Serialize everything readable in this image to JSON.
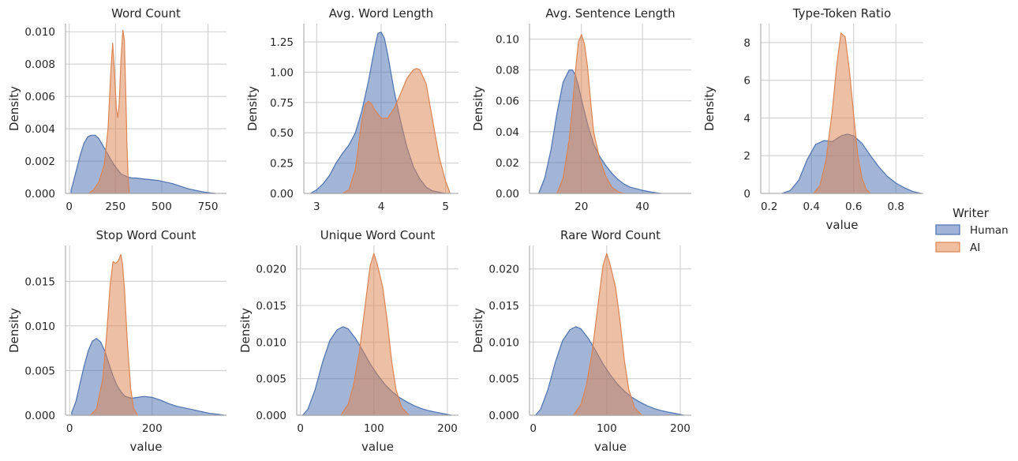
{
  "legend": {
    "title": "Writer",
    "entries": [
      {
        "name": "Human",
        "fill": "#a1b3d7",
        "stroke": "#4c72b0"
      },
      {
        "name": "AI",
        "fill": "#efbf9f",
        "stroke": "#dd8452"
      }
    ]
  },
  "colors": {
    "human_fill": "#4c72b0",
    "human_line": "#4c72b0",
    "ai_fill": "#dd8452",
    "ai_line": "#dd8452",
    "grid": "#cfcfcf",
    "fill_opacity": 0.52
  },
  "chart_data": [
    {
      "type": "area",
      "title": "Word Count",
      "xlabel": "",
      "ylabel": "Density",
      "xlim": [
        -20,
        850
      ],
      "ylim": [
        0,
        0.0105
      ],
      "xticks": [
        0,
        250,
        500,
        750
      ],
      "xticklabels": [
        "0",
        "250",
        "500",
        "750"
      ],
      "yticks": [
        0,
        0.002,
        0.004,
        0.006,
        0.008,
        0.01
      ],
      "yticklabels": [
        "0.000",
        "0.002",
        "0.004",
        "0.006",
        "0.008",
        "0.010"
      ],
      "series": [
        {
          "name": "Human",
          "x": [
            10,
            20,
            40,
            60,
            80,
            100,
            120,
            140,
            160,
            180,
            200,
            220,
            240,
            260,
            280,
            300,
            320,
            340,
            360,
            400,
            440,
            480,
            520,
            560,
            600,
            640,
            680,
            720,
            760,
            790
          ],
          "y": [
            0.0002,
            0.0006,
            0.0015,
            0.0024,
            0.0031,
            0.0035,
            0.0036,
            0.0036,
            0.0034,
            0.003,
            0.0026,
            0.0022,
            0.0018,
            0.0015,
            0.0012,
            0.0011,
            0.001,
            0.00095,
            0.00095,
            0.0009,
            0.00085,
            0.0008,
            0.0007,
            0.0006,
            0.00045,
            0.0003,
            0.0002,
            0.0001,
            4e-05,
            0.0
          ]
        },
        {
          "name": "AI",
          "x": [
            105,
            130,
            160,
            190,
            210,
            225,
            235,
            245,
            255,
            262,
            270,
            280,
            290,
            298,
            305,
            312,
            318,
            325
          ],
          "y": [
            0.0,
            0.0002,
            0.0007,
            0.0018,
            0.004,
            0.0075,
            0.0093,
            0.0075,
            0.0052,
            0.0047,
            0.0055,
            0.0083,
            0.0101,
            0.0095,
            0.0065,
            0.0032,
            0.001,
            0.0
          ]
        }
      ]
    },
    {
      "type": "area",
      "title": "Avg. Word Length",
      "xlabel": "",
      "ylabel": "Density",
      "xlim": [
        2.8,
        5.2
      ],
      "ylim": [
        0,
        1.4
      ],
      "xticks": [
        3,
        4,
        5
      ],
      "xticklabels": [
        "3",
        "4",
        "5"
      ],
      "yticks": [
        0,
        0.25,
        0.5,
        0.75,
        1.0,
        1.25
      ],
      "yticklabels": [
        "0.00",
        "0.25",
        "0.50",
        "0.75",
        "1.00",
        "1.25"
      ],
      "series": [
        {
          "name": "Human",
          "x": [
            2.9,
            3.0,
            3.1,
            3.2,
            3.3,
            3.4,
            3.5,
            3.6,
            3.7,
            3.8,
            3.9,
            3.95,
            4.0,
            4.05,
            4.1,
            4.2,
            4.3,
            4.4,
            4.5,
            4.6,
            4.7,
            4.8,
            4.9,
            5.0
          ],
          "y": [
            0.0,
            0.03,
            0.08,
            0.15,
            0.25,
            0.33,
            0.4,
            0.5,
            0.68,
            0.92,
            1.2,
            1.32,
            1.33,
            1.28,
            1.15,
            0.85,
            0.6,
            0.38,
            0.22,
            0.12,
            0.05,
            0.02,
            0.01,
            0.0
          ]
        },
        {
          "name": "AI",
          "x": [
            3.4,
            3.5,
            3.6,
            3.65,
            3.7,
            3.75,
            3.8,
            3.85,
            3.9,
            4.0,
            4.1,
            4.2,
            4.3,
            4.4,
            4.5,
            4.55,
            4.6,
            4.7,
            4.8,
            4.9,
            5.0,
            5.07
          ],
          "y": [
            0.0,
            0.03,
            0.2,
            0.4,
            0.6,
            0.73,
            0.76,
            0.74,
            0.69,
            0.62,
            0.62,
            0.7,
            0.82,
            0.95,
            1.02,
            1.03,
            1.02,
            0.9,
            0.6,
            0.3,
            0.1,
            0.0
          ]
        }
      ]
    },
    {
      "type": "area",
      "title": "Avg. Sentence Length",
      "xlabel": "",
      "ylabel": "Density",
      "xlim": [
        3,
        56
      ],
      "ylim": [
        0,
        0.11
      ],
      "xticks": [
        20,
        40
      ],
      "xticklabels": [
        "20",
        "40"
      ],
      "yticks": [
        0,
        0.02,
        0.04,
        0.06,
        0.08,
        0.1
      ],
      "yticklabels": [
        "0.00",
        "0.02",
        "0.04",
        "0.06",
        "0.08",
        "0.10"
      ],
      "series": [
        {
          "name": "Human",
          "x": [
            6,
            8,
            10,
            12,
            14,
            16,
            17,
            18,
            19,
            20,
            22,
            24,
            26,
            28,
            30,
            32,
            34,
            36,
            38,
            40,
            43,
            46
          ],
          "y": [
            0.0,
            0.01,
            0.028,
            0.052,
            0.072,
            0.08,
            0.08,
            0.077,
            0.07,
            0.061,
            0.045,
            0.032,
            0.024,
            0.018,
            0.013,
            0.009,
            0.006,
            0.004,
            0.003,
            0.002,
            0.0008,
            0.0
          ]
        },
        {
          "name": "AI",
          "x": [
            12,
            14,
            16,
            17,
            18,
            19,
            20,
            21,
            22,
            23,
            24,
            26,
            28,
            30,
            32,
            34
          ],
          "y": [
            0.0,
            0.01,
            0.035,
            0.055,
            0.078,
            0.098,
            0.103,
            0.097,
            0.082,
            0.06,
            0.04,
            0.022,
            0.011,
            0.004,
            0.001,
            0.0
          ]
        }
      ]
    },
    {
      "type": "area",
      "title": "Type-Token Ratio",
      "xlabel": "value",
      "ylabel": "Density",
      "xlim": [
        0.16,
        0.93
      ],
      "ylim": [
        0,
        9
      ],
      "xticks": [
        0.2,
        0.4,
        0.6,
        0.8
      ],
      "xticklabels": [
        "0.2",
        "0.4",
        "0.6",
        "0.8"
      ],
      "yticks": [
        0,
        2,
        4,
        6,
        8
      ],
      "yticklabels": [
        "0",
        "2",
        "4",
        "6",
        "8"
      ],
      "series": [
        {
          "name": "Human",
          "x": [
            0.26,
            0.3,
            0.34,
            0.38,
            0.42,
            0.46,
            0.5,
            0.54,
            0.57,
            0.6,
            0.64,
            0.68,
            0.72,
            0.76,
            0.8,
            0.84,
            0.88,
            0.92
          ],
          "y": [
            0.0,
            0.15,
            0.7,
            1.8,
            2.6,
            2.8,
            2.75,
            3.05,
            3.15,
            3.05,
            2.65,
            2.0,
            1.4,
            0.9,
            0.55,
            0.3,
            0.1,
            0.0
          ]
        },
        {
          "name": "AI",
          "x": [
            0.41,
            0.44,
            0.47,
            0.5,
            0.52,
            0.54,
            0.56,
            0.58,
            0.6,
            0.62,
            0.64,
            0.66,
            0.68
          ],
          "y": [
            0.0,
            0.4,
            1.8,
            4.5,
            6.8,
            8.5,
            8.3,
            6.5,
            4.2,
            2.0,
            0.8,
            0.2,
            0.0
          ]
        }
      ]
    },
    {
      "type": "area",
      "title": "Stop Word Count",
      "xlabel": "value",
      "ylabel": "Density",
      "xlim": [
        -10,
        380
      ],
      "ylim": [
        0,
        0.019
      ],
      "xticks": [
        0,
        200
      ],
      "xticklabels": [
        "0",
        "200"
      ],
      "yticks": [
        0,
        0.005,
        0.01,
        0.015
      ],
      "yticklabels": [
        "0.000",
        "0.005",
        "0.010",
        "0.015"
      ],
      "series": [
        {
          "name": "Human",
          "x": [
            5,
            15,
            25,
            35,
            45,
            55,
            65,
            75,
            85,
            95,
            105,
            115,
            125,
            135,
            150,
            165,
            180,
            200,
            220,
            240,
            260,
            280,
            300,
            320,
            340,
            360,
            375
          ],
          "y": [
            0.0003,
            0.0015,
            0.0035,
            0.0055,
            0.0072,
            0.0083,
            0.0086,
            0.0082,
            0.0072,
            0.0058,
            0.0044,
            0.0033,
            0.0026,
            0.0021,
            0.0019,
            0.002,
            0.0021,
            0.002,
            0.0017,
            0.0013,
            0.001,
            0.0008,
            0.0006,
            0.0004,
            0.0002,
            0.0001,
            0.0
          ]
        },
        {
          "name": "AI",
          "x": [
            50,
            65,
            80,
            90,
            98,
            105,
            112,
            118,
            124,
            128,
            133,
            140,
            148,
            155,
            165
          ],
          "y": [
            0.0,
            0.0007,
            0.004,
            0.0092,
            0.0145,
            0.0172,
            0.017,
            0.0173,
            0.018,
            0.017,
            0.014,
            0.008,
            0.003,
            0.0008,
            0.0
          ]
        }
      ]
    },
    {
      "type": "area",
      "title": "Unique Word Count",
      "xlabel": "value",
      "ylabel": "Density",
      "xlim": [
        -5,
        215
      ],
      "ylim": [
        0,
        0.0232
      ],
      "xticks": [
        0,
        100,
        200
      ],
      "xticklabels": [
        "0",
        "100",
        "200"
      ],
      "yticks": [
        0,
        0.005,
        0.01,
        0.015,
        0.02
      ],
      "yticklabels": [
        "0.000",
        "0.005",
        "0.010",
        "0.015",
        "0.020"
      ],
      "series": [
        {
          "name": "Human",
          "x": [
            3,
            10,
            20,
            30,
            40,
            50,
            58,
            65,
            75,
            85,
            95,
            105,
            115,
            125,
            135,
            145,
            155,
            165,
            175,
            185,
            195,
            205
          ],
          "y": [
            0.0,
            0.0008,
            0.0035,
            0.0072,
            0.0102,
            0.0117,
            0.0121,
            0.0118,
            0.0105,
            0.0088,
            0.007,
            0.0055,
            0.0042,
            0.0032,
            0.0024,
            0.0018,
            0.0013,
            0.0009,
            0.0006,
            0.0004,
            0.0002,
            0.0
          ]
        },
        {
          "name": "AI",
          "x": [
            55,
            65,
            72,
            80,
            88,
            95,
            100,
            104,
            108,
            112,
            118,
            124,
            130,
            138,
            148
          ],
          "y": [
            0.0,
            0.0015,
            0.004,
            0.0085,
            0.015,
            0.0205,
            0.0221,
            0.0208,
            0.0192,
            0.0175,
            0.013,
            0.0075,
            0.0035,
            0.001,
            0.0
          ]
        }
      ]
    },
    {
      "type": "area",
      "title": "Rare Word Count",
      "xlabel": "value",
      "ylabel": "Density",
      "xlim": [
        -5,
        215
      ],
      "ylim": [
        0,
        0.0232
      ],
      "xticks": [
        0,
        100,
        200
      ],
      "xticklabels": [
        "0",
        "100",
        "200"
      ],
      "yticks": [
        0,
        0.005,
        0.01,
        0.015,
        0.02
      ],
      "yticklabels": [
        "0.000",
        "0.005",
        "0.010",
        "0.015",
        "0.020"
      ],
      "series": [
        {
          "name": "Human",
          "x": [
            3,
            10,
            20,
            30,
            40,
            50,
            58,
            65,
            75,
            85,
            95,
            105,
            115,
            125,
            135,
            145,
            155,
            165,
            175,
            185,
            195,
            205
          ],
          "y": [
            0.0,
            0.0008,
            0.0035,
            0.0072,
            0.0102,
            0.0117,
            0.0121,
            0.0118,
            0.0105,
            0.0088,
            0.007,
            0.0055,
            0.0042,
            0.0032,
            0.0024,
            0.0018,
            0.0013,
            0.0009,
            0.0006,
            0.0004,
            0.0002,
            0.0
          ]
        },
        {
          "name": "AI",
          "x": [
            55,
            65,
            72,
            80,
            88,
            95,
            100,
            104,
            108,
            112,
            118,
            124,
            130,
            138,
            148
          ],
          "y": [
            0.0,
            0.0015,
            0.004,
            0.0085,
            0.015,
            0.0205,
            0.0221,
            0.0208,
            0.0192,
            0.0175,
            0.013,
            0.0075,
            0.0035,
            0.001,
            0.0
          ]
        }
      ]
    }
  ]
}
